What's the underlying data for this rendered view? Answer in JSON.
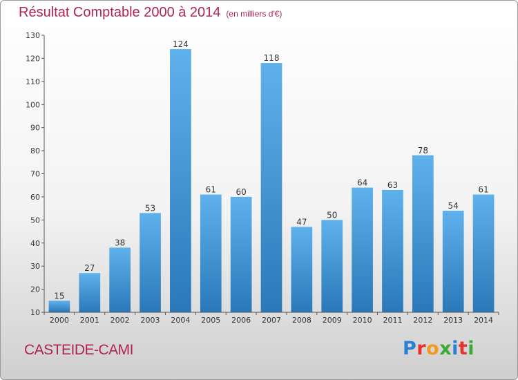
{
  "header": {
    "title": "Résultat Comptable 2000 à 2014",
    "subtitle": "(en milliers d'€)"
  },
  "footer": {
    "commune": "CASTEIDE-CAMI",
    "logo_text": "Proxiti",
    "logo_colors": [
      "#2a7fd0",
      "#e8322e",
      "#f29a1f",
      "#3aa935",
      "#2a7fd0",
      "#e8322e",
      "#3aa935"
    ]
  },
  "chart_data": {
    "type": "bar",
    "title": "Résultat Comptable 2000 à 2014",
    "subtitle": "(en milliers d'€)",
    "categories": [
      "2000",
      "2001",
      "2002",
      "2003",
      "2004",
      "2005",
      "2006",
      "2007",
      "2008",
      "2009",
      "2010",
      "2011",
      "2012",
      "2013",
      "2014"
    ],
    "values": [
      15,
      27,
      38,
      53,
      124,
      61,
      60,
      118,
      47,
      50,
      64,
      63,
      78,
      54,
      61
    ],
    "ylim": [
      10,
      130
    ],
    "yticks": [
      10,
      20,
      30,
      40,
      50,
      60,
      70,
      80,
      90,
      100,
      110,
      120,
      130
    ],
    "grid": false,
    "bar_color_top": "#5fb1ec",
    "bar_color_bottom": "#2a78b8"
  }
}
